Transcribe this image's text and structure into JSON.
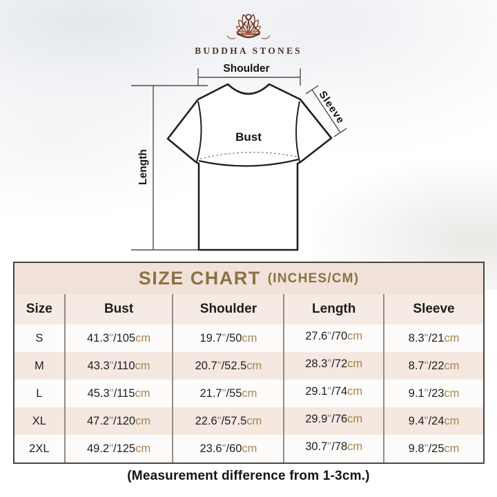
{
  "logo": {
    "brand": "BUDDHA STONES",
    "icon": "lotus-meditation-icon",
    "accent_dark": "#5f2d20",
    "accent_light": "#b06a45"
  },
  "diagram": {
    "shoulder_label": "Shoulder",
    "sleeve_label": "Sleeve",
    "bust_label": "Bust",
    "length_label": "Length"
  },
  "size_chart": {
    "title": "SIZE CHART",
    "unit_label": "(INCHES/CM)",
    "title_color": "#8d7143",
    "band_color": "#f1e2d9",
    "row_pink": "#f4e8e0",
    "row_white": "#fdfcfb",
    "cm_color": "#a8834e",
    "columns": [
      "Size",
      "Bust",
      "Shoulder",
      "Length",
      "Sleeve"
    ],
    "inch_mark": "\"",
    "slash": "/",
    "cm_suffix": "cm",
    "rows": [
      {
        "size": "S",
        "bust": [
          "41.3",
          "105"
        ],
        "shoulder": [
          "19.7",
          "50"
        ],
        "length": [
          "27.6",
          "70"
        ],
        "sleeve": [
          "8.3",
          "21"
        ]
      },
      {
        "size": "M",
        "bust": [
          "43.3",
          "110"
        ],
        "shoulder": [
          "20.7",
          "52.5"
        ],
        "length": [
          "28.3",
          "72"
        ],
        "sleeve": [
          "8.7",
          "22"
        ]
      },
      {
        "size": "L",
        "bust": [
          "45.3",
          "115"
        ],
        "shoulder": [
          "21.7",
          "55"
        ],
        "length": [
          "29.1",
          "74"
        ],
        "sleeve": [
          "9.1",
          "23"
        ]
      },
      {
        "size": "XL",
        "bust": [
          "47.2",
          "120"
        ],
        "shoulder": [
          "22.6",
          "57.5"
        ],
        "length": [
          "29.9",
          "76"
        ],
        "sleeve": [
          "9.4",
          "24"
        ]
      },
      {
        "size": "2XL",
        "bust": [
          "49.2",
          "125"
        ],
        "shoulder": [
          "23.6",
          "60"
        ],
        "length": [
          "30.7",
          "78"
        ],
        "sleeve": [
          "9.8",
          "25"
        ]
      }
    ]
  },
  "footer_note": "(Measurement difference from 1-3cm.)"
}
